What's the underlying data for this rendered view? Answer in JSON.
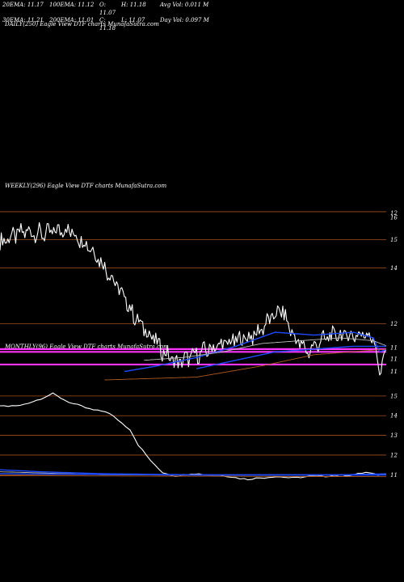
{
  "header": {
    "row1": [
      "20EMA: 11.17",
      "100EMA: 11.12",
      "O: 11.07",
      "H: 11.18",
      "Avg Vol: 0.011 M"
    ],
    "row2": [
      "30EMA: 11.21",
      "200EMA: 11.01",
      "C: 11.18",
      "L: 11.07",
      "Day Vol: 0.097 M"
    ]
  },
  "panels": {
    "daily_title": "DAILY(250) Eagle  View  DTF charts MunafaSutra.com",
    "weekly_title": "WEEKLY(296) Eagle  View  DTF charts MunafaSutra.com",
    "monthly_title": "MONTHLY(96) Eagle  View  DTF charts MunafaSutra.com"
  },
  "colors": {
    "price": "#ffffff",
    "ema_blue": "#1e4bff",
    "ema_white": "#bbbbbb",
    "ema_orange": "#b05a1e",
    "grid": "#a0501e",
    "hline": "#ff33ff"
  },
  "chart_data": [
    {
      "type": "line",
      "title": "WEEKLY(296) Eagle  View  DTF charts MunafaSutra.com",
      "y_ticks": [
        16,
        15,
        14,
        12,
        11
      ],
      "right_labels": [
        "12",
        "16",
        "15",
        "14",
        "12",
        "11",
        "11",
        "11"
      ],
      "ylim": [
        10.0,
        16.2
      ],
      "n": 296,
      "series": [
        {
          "role": "price",
          "color": "#ffffff",
          "anchors": [
            [
              0,
              14.9
            ],
            [
              8,
              15.1
            ],
            [
              20,
              15.3
            ],
            [
              35,
              15.2
            ],
            [
              50,
              15.4
            ],
            [
              60,
              15.1
            ],
            [
              70,
              14.7
            ],
            [
              85,
              13.7
            ],
            [
              95,
              12.9
            ],
            [
              105,
              12.1
            ],
            [
              115,
              11.6
            ],
            [
              125,
              11.0
            ],
            [
              135,
              10.6
            ],
            [
              140,
              10.7
            ],
            [
              155,
              11.0
            ],
            [
              165,
              11.2
            ],
            [
              180,
              11.4
            ],
            [
              195,
              11.6
            ],
            [
              205,
              12.1
            ],
            [
              215,
              12.5
            ],
            [
              225,
              11.5
            ],
            [
              235,
              11.0
            ],
            [
              245,
              11.4
            ],
            [
              255,
              11.6
            ],
            [
              265,
              11.6
            ],
            [
              275,
              11.6
            ],
            [
              282,
              11.7
            ],
            [
              287,
              11.2
            ],
            [
              290,
              10.1
            ],
            [
              293,
              10.8
            ],
            [
              296,
              11.2
            ]
          ],
          "noise": 0.28
        },
        {
          "role": "ema20",
          "color": "#1e4bff",
          "anchors": [
            [
              95,
              10.3
            ],
            [
              120,
              10.5
            ],
            [
              150,
              10.8
            ],
            [
              180,
              11.2
            ],
            [
              210,
              11.7
            ],
            [
              240,
              11.6
            ],
            [
              270,
              11.7
            ],
            [
              285,
              11.5
            ],
            [
              290,
              11.0
            ],
            [
              296,
              11.1
            ]
          ],
          "noise": 0.0
        },
        {
          "role": "ema30",
          "color": "#bbbbbb",
          "anchors": [
            [
              110,
              10.7
            ],
            [
              140,
              10.8
            ],
            [
              170,
              11.0
            ],
            [
              200,
              11.3
            ],
            [
              230,
              11.4
            ],
            [
              260,
              11.5
            ],
            [
              285,
              11.4
            ],
            [
              296,
              11.2
            ]
          ],
          "noise": 0.0
        },
        {
          "role": "ema100",
          "color": "#1e4bff",
          "anchors": [
            [
              150,
              10.4
            ],
            [
              180,
              10.7
            ],
            [
              210,
              11.0
            ],
            [
              240,
              11.1
            ],
            [
              270,
              11.2
            ],
            [
              296,
              11.2
            ]
          ],
          "noise": 0.0
        },
        {
          "role": "ema200",
          "color": "#b05a1e",
          "anchors": [
            [
              80,
              10.0
            ],
            [
              150,
              10.1
            ],
            [
              200,
              10.5
            ],
            [
              240,
              10.9
            ],
            [
              296,
              11.1
            ]
          ],
          "noise": 0.0
        }
      ],
      "hlines": [
        11.1,
        11.0,
        10.55
      ]
    },
    {
      "type": "line",
      "title": "MONTHLY(96) Eagle  View  DTF charts MunafaSutra.com",
      "y_ticks": [
        15,
        14,
        13,
        12,
        11
      ],
      "right_labels": [
        "15",
        "14",
        "13",
        "12",
        "11"
      ],
      "ylim": [
        10.6,
        15.2
      ],
      "n": 96,
      "series": [
        {
          "role": "price",
          "color": "#ffffff",
          "anchors": [
            [
              0,
              14.5
            ],
            [
              5,
              14.5
            ],
            [
              9,
              14.8
            ],
            [
              13,
              15.1
            ],
            [
              15,
              14.9
            ],
            [
              18,
              14.6
            ],
            [
              21,
              14.4
            ],
            [
              23,
              14.3
            ],
            [
              26,
              14.2
            ],
            [
              29,
              13.8
            ],
            [
              32,
              13.3
            ],
            [
              34,
              12.5
            ],
            [
              36,
              12.0
            ],
            [
              38,
              11.5
            ],
            [
              40,
              11.1
            ],
            [
              43,
              10.95
            ],
            [
              47,
              11.05
            ],
            [
              52,
              11.0
            ],
            [
              57,
              10.9
            ],
            [
              61,
              10.75
            ],
            [
              64,
              10.85
            ],
            [
              67,
              10.9
            ],
            [
              72,
              10.85
            ],
            [
              77,
              10.9
            ],
            [
              82,
              10.95
            ],
            [
              87,
              11.0
            ],
            [
              90,
              11.1
            ],
            [
              93,
              11.0
            ],
            [
              96,
              11.1
            ]
          ],
          "noise": 0.04
        },
        {
          "role": "ema20",
          "color": "#1e4bff",
          "anchors": [
            [
              0,
              11.25
            ],
            [
              10,
              11.15
            ],
            [
              25,
              11.05
            ],
            [
              45,
              11.0
            ],
            [
              70,
              11.0
            ],
            [
              85,
              11.0
            ],
            [
              96,
              11.05
            ]
          ],
          "noise": 0.0
        },
        {
          "role": "ema30",
          "color": "#bbbbbb",
          "anchors": [
            [
              0,
              11.15
            ],
            [
              25,
              11.0
            ],
            [
              50,
              10.98
            ],
            [
              80,
              10.98
            ],
            [
              96,
              11.0
            ]
          ],
          "noise": 0.0
        },
        {
          "role": "ema100",
          "color": "#1e4bff",
          "anchors": [
            [
              0,
              11.05
            ],
            [
              50,
              10.98
            ],
            [
              96,
              10.98
            ]
          ],
          "noise": 0.0
        },
        {
          "role": "ema200",
          "color": "#b05a1e",
          "anchors": [
            [
              0,
              10.95
            ],
            [
              96,
              10.9
            ]
          ],
          "noise": 0.0
        }
      ],
      "hlines": []
    }
  ]
}
